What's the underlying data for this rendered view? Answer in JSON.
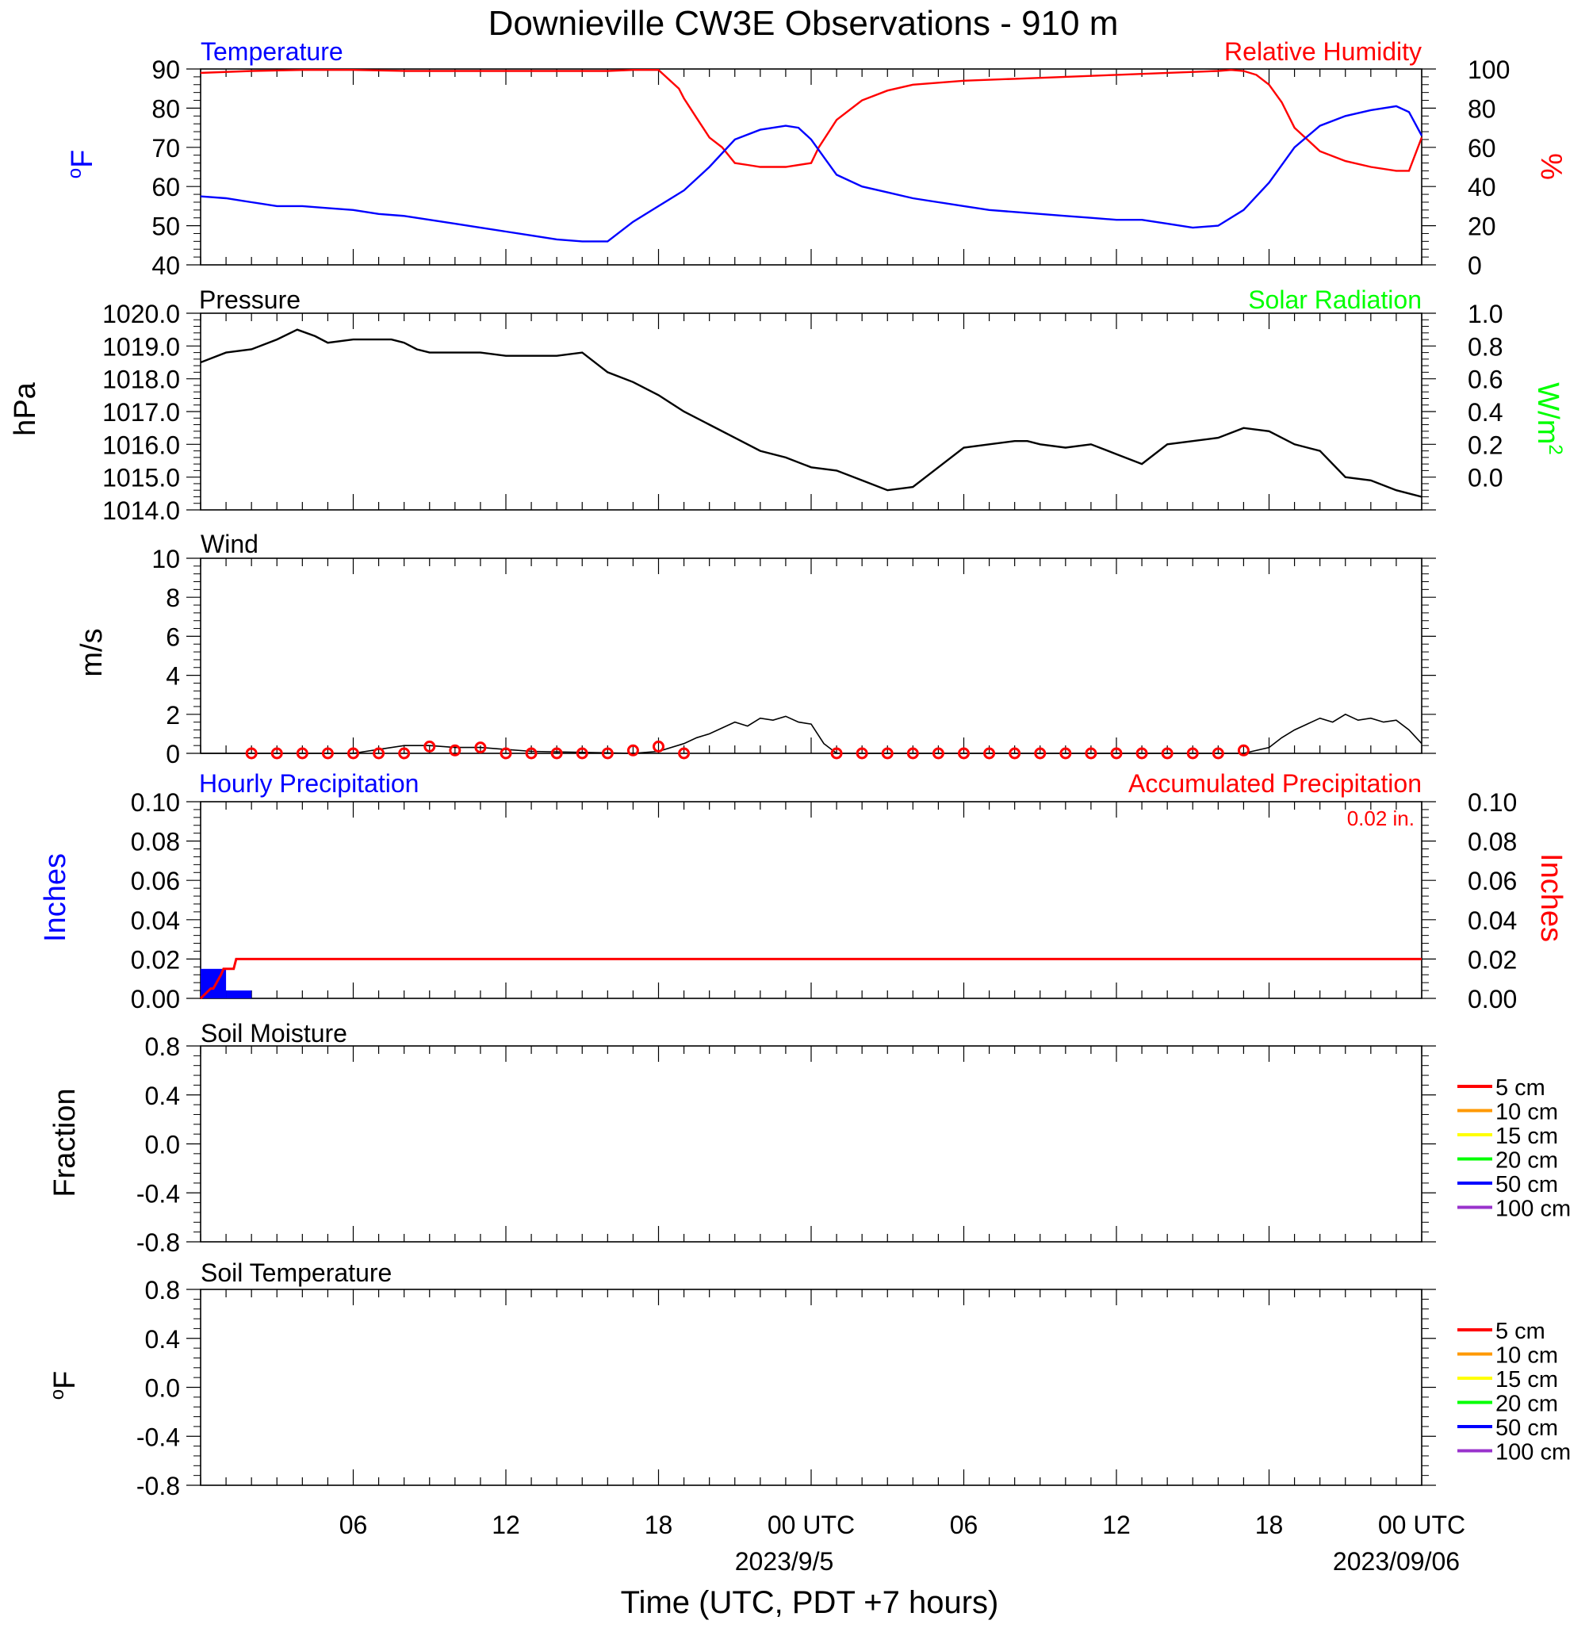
{
  "title": "Downieville CW3E Observations - 910 m",
  "x_axis": {
    "label": "Time (UTC, PDT +7 hours)",
    "tick_labels": [
      "06",
      "12",
      "18",
      "00 UTC",
      "06",
      "12",
      "18",
      "00 UTC"
    ],
    "date_labels": [
      "2023/9/5",
      "2023/09/06"
    ],
    "range_hours": [
      0,
      48
    ]
  },
  "colors": {
    "temperature": "#0000ff",
    "relative_humidity": "#ff0000",
    "pressure": "#000000",
    "solar": "#00ff00",
    "hourly_precip": "#0000ff",
    "accum_precip": "#ff0000",
    "wind": "#000000",
    "wind_barb": "#ff0000"
  },
  "legend": {
    "soil_moisture": [
      {
        "label": "5 cm",
        "color": "#ff0000"
      },
      {
        "label": "10 cm",
        "color": "#ff9900"
      },
      {
        "label": "15 cm",
        "color": "#ffff00"
      },
      {
        "label": "20 cm",
        "color": "#00ff00"
      },
      {
        "label": "50 cm",
        "color": "#0000ff"
      },
      {
        "label": "100 cm",
        "color": "#9933cc"
      }
    ],
    "soil_temperature": [
      {
        "label": "5 cm",
        "color": "#ff0000"
      },
      {
        "label": "10 cm",
        "color": "#ff9900"
      },
      {
        "label": "15 cm",
        "color": "#ffff00"
      },
      {
        "label": "20 cm",
        "color": "#00ff00"
      },
      {
        "label": "50 cm",
        "color": "#0000ff"
      },
      {
        "label": "100 cm",
        "color": "#9933cc"
      }
    ]
  },
  "chart_data": [
    {
      "type": "line",
      "left_title": "Temperature",
      "right_title": "Relative Humidity",
      "ylabel_left": "oF",
      "ylabel_right": "%",
      "ylim_left": [
        40,
        90
      ],
      "ylim_right": [
        0,
        100
      ],
      "yticks_left": [
        "90",
        "80",
        "70",
        "60",
        "50",
        "40"
      ],
      "yticks_right": [
        "100",
        "80",
        "60",
        "40",
        "20",
        "0"
      ],
      "series": [
        {
          "name": "Temperature",
          "axis": "left",
          "x": [
            0,
            1,
            2,
            3,
            4,
            5,
            6,
            7,
            8,
            9,
            10,
            11,
            12,
            13,
            14,
            15,
            16,
            17,
            18,
            19,
            20,
            21,
            22,
            23,
            23.5,
            24,
            25,
            26,
            27,
            28,
            29,
            30,
            31,
            32,
            33,
            34,
            35,
            36,
            37,
            38,
            39,
            40,
            41,
            42,
            43,
            44,
            45,
            46,
            47,
            47.5,
            48
          ],
          "y": [
            57.5,
            57,
            56,
            55,
            55,
            54.5,
            54,
            53,
            52.5,
            51.5,
            50.5,
            49.5,
            48.5,
            47.5,
            46.5,
            46,
            46,
            51,
            55,
            59,
            65,
            72,
            74.5,
            75.5,
            75,
            72,
            63,
            60,
            58.5,
            57,
            56,
            55,
            54,
            53.5,
            53,
            52.5,
            52,
            51.5,
            51.5,
            50.5,
            49.5,
            50,
            54,
            61,
            70,
            75.5,
            78,
            79.5,
            80.5,
            79,
            73
          ]
        },
        {
          "name": "Relative Humidity",
          "axis": "right",
          "x": [
            0,
            2,
            4,
            6,
            8,
            10,
            12,
            14,
            16,
            17,
            18,
            18.8,
            19,
            19.5,
            20,
            20.5,
            21,
            21.5,
            22,
            23,
            24,
            24.3,
            25,
            26,
            27,
            28,
            30,
            32,
            34,
            36,
            38,
            40,
            40.5,
            41,
            41.5,
            42,
            42.5,
            43,
            44,
            45,
            46,
            47,
            47.5,
            48
          ],
          "y": [
            98,
            99,
            99.5,
            99.5,
            99,
            99,
            99,
            99,
            99,
            99.5,
            99.5,
            90,
            85,
            75,
            65,
            60,
            52,
            51,
            50,
            50,
            52,
            60,
            74,
            84,
            89,
            92,
            94,
            95,
            96,
            97,
            98,
            99,
            99.5,
            99,
            97,
            92,
            83,
            70,
            58,
            53,
            50,
            48,
            48,
            65
          ]
        }
      ]
    },
    {
      "type": "line",
      "left_title": "Pressure",
      "right_title": "Solar Radiation",
      "ylabel_left": "hPa",
      "ylabel_right": "W/m2",
      "ylim_left": [
        1014,
        1020
      ],
      "ylim_right": [
        0,
        1
      ],
      "yticks_left": [
        "1020.0",
        "1019.0",
        "1018.0",
        "1017.0",
        "1016.0",
        "1015.0",
        "1014.0"
      ],
      "yticks_right": [
        "1.0",
        "0.8",
        "0.6",
        "0.4",
        "0.2",
        "0.0"
      ],
      "series": [
        {
          "name": "Pressure",
          "axis": "left",
          "x": [
            0,
            1,
            2,
            3,
            3.8,
            4.5,
            5,
            6,
            7,
            7.5,
            8,
            8.5,
            9,
            10,
            11,
            12,
            13,
            14,
            15,
            16,
            17,
            18,
            19,
            20,
            21,
            22,
            23,
            24,
            25,
            26,
            27,
            28,
            29,
            30,
            31,
            32,
            32.5,
            33,
            34,
            35,
            36,
            37,
            38,
            39,
            40,
            41,
            42,
            43,
            44,
            45,
            46,
            47,
            48
          ],
          "y": [
            1018.5,
            1018.8,
            1018.9,
            1019.2,
            1019.5,
            1019.3,
            1019.1,
            1019.2,
            1019.2,
            1019.2,
            1019.1,
            1018.9,
            1018.8,
            1018.8,
            1018.8,
            1018.7,
            1018.7,
            1018.7,
            1018.8,
            1018.2,
            1017.9,
            1017.5,
            1017.0,
            1016.6,
            1016.2,
            1015.8,
            1015.6,
            1015.3,
            1015.2,
            1014.9,
            1014.6,
            1014.7,
            1015.3,
            1015.9,
            1016.0,
            1016.1,
            1016.1,
            1016.0,
            1015.9,
            1016.0,
            1015.7,
            1015.4,
            1016.0,
            1016.1,
            1016.2,
            1016.5,
            1016.4,
            1016.0,
            1015.8,
            1015.0,
            1014.9,
            1014.6,
            1014.4
          ]
        }
      ]
    },
    {
      "type": "line",
      "left_title": "Wind",
      "ylabel_left": "m/s",
      "ylim_left": [
        0,
        10
      ],
      "yticks_left": [
        "10",
        "8",
        "6",
        "4",
        "2",
        "0"
      ],
      "series": [
        {
          "name": "Wind",
          "axis": "left",
          "x": [
            0,
            6,
            7,
            8,
            9,
            10,
            11,
            12,
            13,
            17,
            18,
            19,
            19.5,
            20,
            20.5,
            21,
            21.5,
            22,
            22.5,
            23,
            23.5,
            24,
            24.5,
            25,
            41,
            42,
            42.5,
            43,
            43.5,
            44,
            44.5,
            45,
            45.5,
            46,
            46.5,
            47,
            47.5,
            48
          ],
          "y": [
            0,
            0,
            0.2,
            0.4,
            0.4,
            0.3,
            0.3,
            0.2,
            0.1,
            0,
            0.1,
            0.5,
            0.8,
            1.0,
            1.3,
            1.6,
            1.4,
            1.8,
            1.7,
            1.9,
            1.6,
            1.5,
            0.5,
            0,
            0,
            0.3,
            0.8,
            1.2,
            1.5,
            1.8,
            1.6,
            2.0,
            1.7,
            1.8,
            1.6,
            1.7,
            1.2,
            0.5
          ]
        },
        {
          "name": "Wind Barbs",
          "axis": "left",
          "x": [
            2,
            3,
            4,
            5,
            6,
            7,
            8,
            9,
            10,
            11,
            12,
            13,
            14,
            15,
            16,
            17,
            18,
            19,
            25,
            26,
            27,
            28,
            29,
            30,
            31,
            32,
            33,
            34,
            35,
            36,
            37,
            38,
            39,
            40,
            41
          ],
          "y": [
            0,
            0,
            0,
            0,
            0,
            0,
            0,
            0.35,
            0.15,
            0.3,
            0,
            0,
            0,
            0,
            0,
            0.15,
            0.35,
            0,
            0,
            0,
            0,
            0,
            0,
            0,
            0,
            0,
            0,
            0,
            0,
            0,
            0,
            0,
            0,
            0,
            0.15
          ]
        }
      ]
    },
    {
      "type": "area",
      "left_title": "Hourly Precipitation",
      "right_title": "Accumulated Precipitation",
      "annotation": "0.02 in.",
      "ylabel_left": "Inches",
      "ylabel_right": "Inches",
      "ylim_left": [
        0,
        0.1
      ],
      "ylim_right": [
        0,
        0.1
      ],
      "yticks_left": [
        "0.10",
        "0.08",
        "0.06",
        "0.04",
        "0.02",
        "0.00"
      ],
      "yticks_right": [
        "0.10",
        "0.08",
        "0.06",
        "0.04",
        "0.02",
        "0.00"
      ],
      "series": [
        {
          "name": "Hourly Precipitation",
          "axis": "left",
          "x": [
            0,
            1,
            2
          ],
          "y": [
            0.015,
            0.004,
            0
          ]
        },
        {
          "name": "Accumulated Precipitation",
          "axis": "right",
          "x": [
            0,
            0.4,
            0.5,
            0.8,
            0.9,
            1.3,
            1.4,
            48
          ],
          "y": [
            0,
            0.005,
            0.005,
            0.012,
            0.015,
            0.015,
            0.02,
            0.02
          ]
        }
      ]
    },
    {
      "type": "line",
      "left_title": "Soil Moisture",
      "ylabel_left": "Fraction",
      "ylim_left": [
        -1,
        1
      ],
      "yticks_left": [
        "0.8",
        "0.4",
        "0.0",
        "-0.4",
        "-0.8"
      ],
      "series": []
    },
    {
      "type": "line",
      "left_title": "Soil Temperature",
      "ylabel_left": "oF",
      "ylim_left": [
        -1,
        1
      ],
      "yticks_left": [
        "0.8",
        "0.4",
        "0.0",
        "-0.4",
        "-0.8"
      ],
      "series": []
    }
  ]
}
